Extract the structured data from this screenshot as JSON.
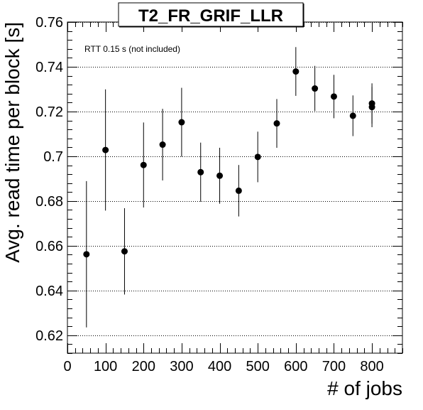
{
  "chart_data": {
    "type": "scatter",
    "title": "T2_FR_GRIF_LLR",
    "xlabel": "# of jobs",
    "ylabel": "Avg. read time per block [s]",
    "annotation": "RTT 0.15 s (not included)",
    "xlim": [
      0,
      880
    ],
    "ylim": [
      0.612,
      0.76
    ],
    "x_ticks": [
      0,
      100,
      200,
      300,
      400,
      500,
      600,
      700,
      800
    ],
    "x_tick_labels": [
      "0",
      "100",
      "200",
      "300",
      "400",
      "500",
      "600",
      "700",
      "800"
    ],
    "y_ticks": [
      0.62,
      0.64,
      0.66,
      0.68,
      0.7,
      0.72,
      0.74,
      0.76
    ],
    "y_tick_labels": [
      "0.62",
      "0.64",
      "0.66",
      "0.68",
      "0.7",
      "0.72",
      "0.74",
      "0.76"
    ],
    "grid": "horizontal dotted",
    "marker_color": "#000000",
    "points": [
      {
        "x": 50,
        "y": 0.6562,
        "err": 0.0327
      },
      {
        "x": 100,
        "y": 0.7028,
        "err": 0.0271
      },
      {
        "x": 150,
        "y": 0.6575,
        "err": 0.0193
      },
      {
        "x": 200,
        "y": 0.6961,
        "err": 0.019
      },
      {
        "x": 250,
        "y": 0.7052,
        "err": 0.016
      },
      {
        "x": 300,
        "y": 0.7152,
        "err": 0.0154
      },
      {
        "x": 350,
        "y": 0.6929,
        "err": 0.0132
      },
      {
        "x": 400,
        "y": 0.6913,
        "err": 0.0125
      },
      {
        "x": 450,
        "y": 0.6846,
        "err": 0.0115
      },
      {
        "x": 500,
        "y": 0.6997,
        "err": 0.0113
      },
      {
        "x": 550,
        "y": 0.7147,
        "err": 0.0109
      },
      {
        "x": 600,
        "y": 0.7379,
        "err": 0.0109
      },
      {
        "x": 650,
        "y": 0.7303,
        "err": 0.0101
      },
      {
        "x": 700,
        "y": 0.7267,
        "err": 0.0097
      },
      {
        "x": 750,
        "y": 0.7181,
        "err": 0.0091
      },
      {
        "x": 800,
        "y": 0.722,
        "err": 0.009
      },
      {
        "x": 800,
        "y": 0.7236,
        "err": 0.009
      }
    ]
  }
}
